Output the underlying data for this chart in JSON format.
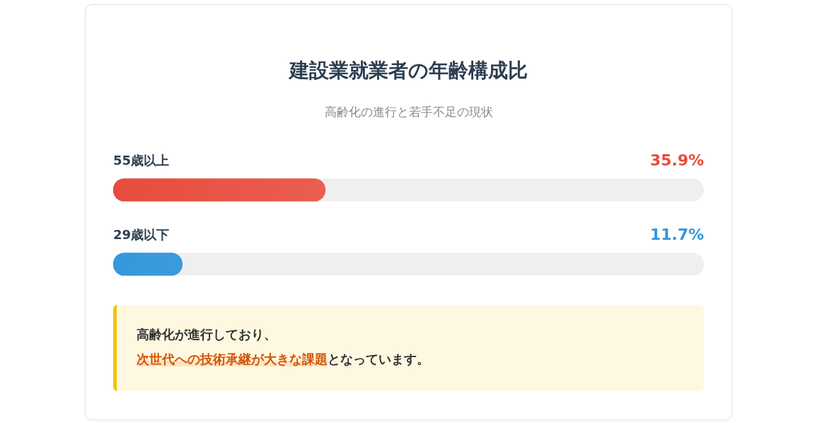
{
  "chart_data": {
    "type": "bar",
    "orientation": "horizontal",
    "title": "建設業就業者の年齢構成比",
    "subtitle": "高齢化の進行と若手不足の現状",
    "categories": [
      "55歳以上",
      "29歳以下"
    ],
    "values": [
      35.9,
      11.7
    ],
    "colors": [
      "#e74c3c",
      "#3498db"
    ],
    "value_labels": [
      "35.9%",
      "11.7%"
    ],
    "xlim": [
      0,
      100
    ],
    "tick_labels": "y",
    "annotations": [
      "高齢化が進行しており、",
      "次世代への技術承継が大きな課題",
      "となっています。"
    ]
  }
}
